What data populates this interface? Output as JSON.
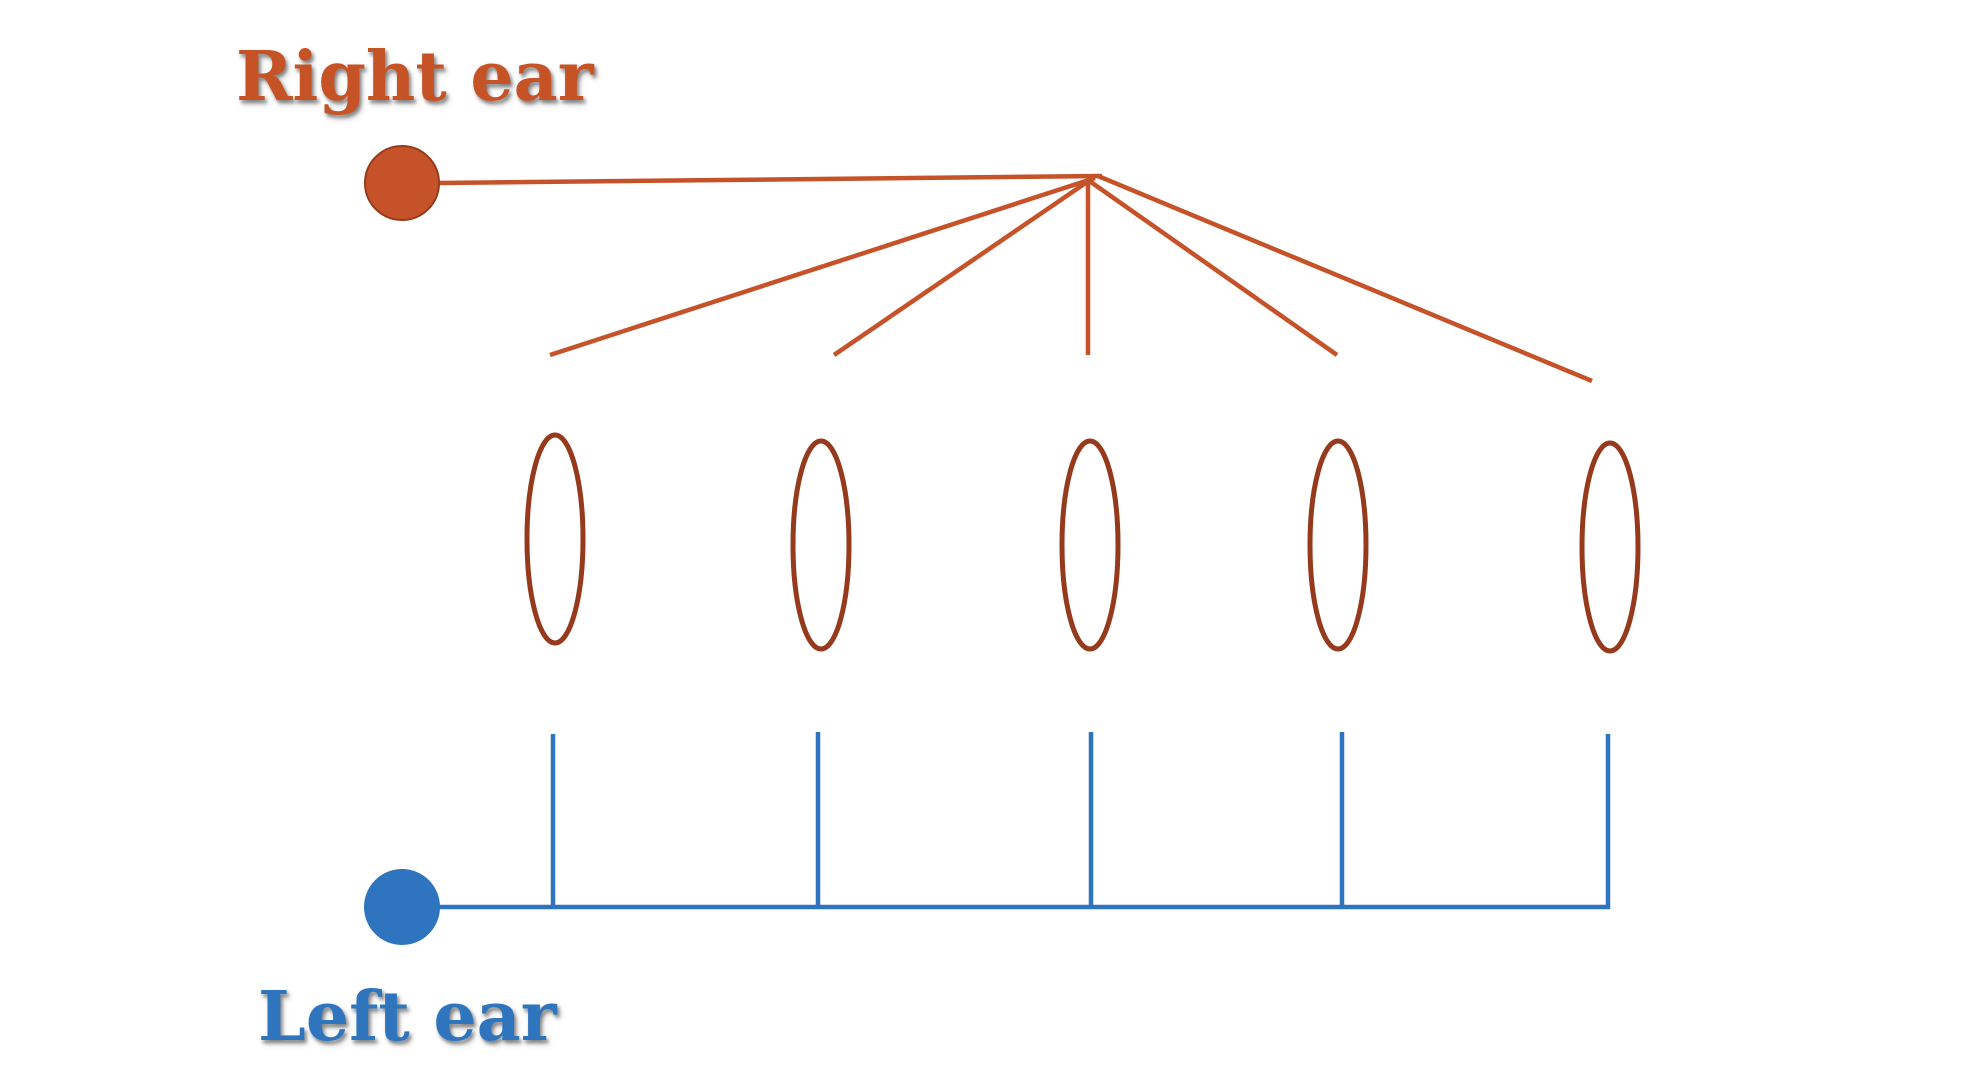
{
  "labels": {
    "right_ear": "Right ear",
    "left_ear": "Left ear"
  },
  "colors": {
    "right_ear": "#C55228",
    "left_ear": "#2E74BE",
    "ellipse_stroke": "#963A1E",
    "background": "#FFFFFF"
  },
  "nodes": {
    "right_ear": {
      "shape": "filled-circle"
    },
    "left_ear": {
      "shape": "filled-circle"
    }
  },
  "ellipse_count": 5,
  "right_ear_connection": "single line fanning out to all five ellipses",
  "left_ear_connection": "separate vertical branch to each of the five ellipses"
}
